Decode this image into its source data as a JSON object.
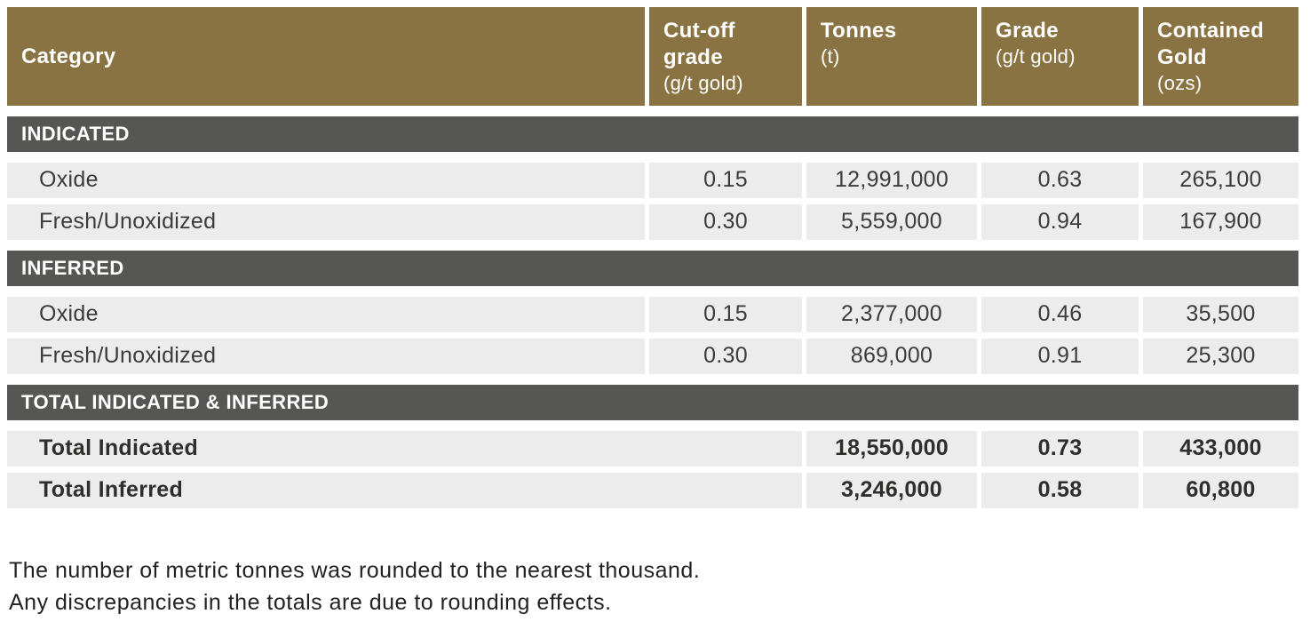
{
  "table": {
    "columns": [
      {
        "title": "Category",
        "sub": ""
      },
      {
        "title": "Cut-off grade",
        "sub": "(g/t gold)"
      },
      {
        "title": "Tonnes",
        "sub": "(t)"
      },
      {
        "title": "Grade",
        "sub": "(g/t gold)"
      },
      {
        "title": "Contained Gold",
        "sub": "(ozs)"
      }
    ],
    "sections": [
      {
        "label": "INDICATED",
        "rows": [
          {
            "category": "Oxide",
            "cutoff": "0.15",
            "tonnes": "12,991,000",
            "grade": "0.63",
            "gold": "265,100"
          },
          {
            "category": "Fresh/Unoxidized",
            "cutoff": "0.30",
            "tonnes": "5,559,000",
            "grade": "0.94",
            "gold": "167,900"
          }
        ]
      },
      {
        "label": "INFERRED",
        "rows": [
          {
            "category": "Oxide",
            "cutoff": "0.15",
            "tonnes": "2,377,000",
            "grade": "0.46",
            "gold": "35,500"
          },
          {
            "category": "Fresh/Unoxidized",
            "cutoff": "0.30",
            "tonnes": "869,000",
            "grade": "0.91",
            "gold": "25,300"
          }
        ]
      },
      {
        "label": "TOTAL INDICATED & INFERRED",
        "rows": [
          {
            "category": "Total Indicated",
            "cutoff": "",
            "tonnes": "18,550,000",
            "grade": "0.73",
            "gold": "433,000"
          },
          {
            "category": "Total Inferred",
            "cutoff": "",
            "tonnes": "3,246,000",
            "grade": "0.58",
            "gold": "60,800"
          }
        ]
      }
    ]
  },
  "notes": {
    "line1": "The number of metric tonnes was rounded to the nearest thousand.",
    "line2": "Any discrepancies in the totals are due to rounding effects."
  },
  "colors": {
    "header_bg": "#8a7342",
    "section_bg": "#565655",
    "row_bg": "#ececec",
    "header_text": "#ffffff",
    "body_text": "#3b3b3a"
  }
}
